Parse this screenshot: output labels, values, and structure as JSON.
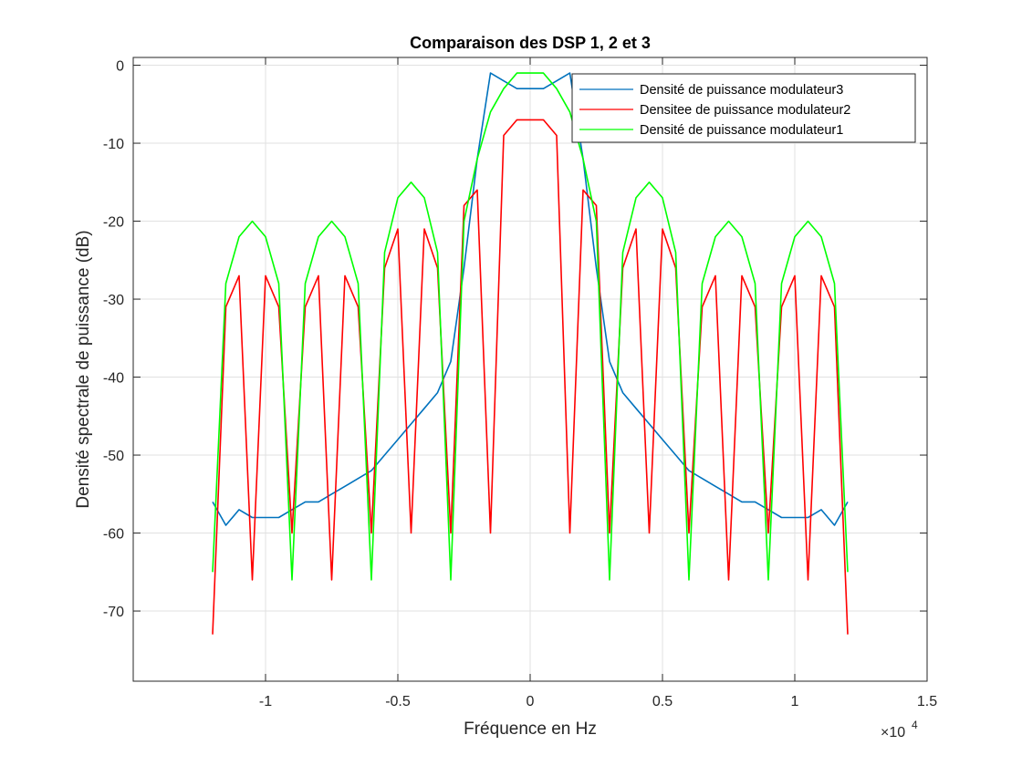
{
  "chart_data": {
    "type": "line",
    "title": "Comparaison des DSP 1, 2 et 3",
    "xlabel": "Fréquence en Hz",
    "ylabel": "Densité spectrale de puissance (dB)",
    "x_exponent_label": "×10",
    "x_exponent_power": "4",
    "xlim": [
      -15000,
      15000
    ],
    "ylim": [
      -79,
      1
    ],
    "x_ticks": [
      -10000,
      -5000,
      0,
      5000,
      10000,
      15000
    ],
    "x_tick_labels": [
      "-1",
      "-0.5",
      "0",
      "0.5",
      "1",
      "1.5"
    ],
    "y_ticks": [
      0,
      -10,
      -20,
      -30,
      -40,
      -50,
      -60,
      -70
    ],
    "y_tick_labels": [
      "0",
      "-10",
      "-20",
      "-30",
      "-40",
      "-50",
      "-60",
      "-70"
    ],
    "grid": true,
    "legend_position": "top-right",
    "series": [
      {
        "name": "Densité de puissance modulateur3",
        "color": "#0072BD",
        "x": [
          -12000,
          -11500,
          -11000,
          -10500,
          -10000,
          -9500,
          -9000,
          -8500,
          -8000,
          -7500,
          -7000,
          -6500,
          -6000,
          -5500,
          -5000,
          -4500,
          -4000,
          -3500,
          -3000,
          -2500,
          -2000,
          -1500,
          -1000,
          -500,
          0,
          500,
          1000,
          1500,
          2000,
          2500,
          3000,
          3500,
          4000,
          4500,
          5000,
          5500,
          6000,
          6500,
          7000,
          7500,
          8000,
          8500,
          9000,
          9500,
          10000,
          10500,
          11000,
          11500,
          12000
        ],
        "values": [
          -56,
          -59,
          -57,
          -58,
          -58,
          -58,
          -57,
          -56,
          -56,
          -55,
          -54,
          -53,
          -52,
          -50,
          -48,
          -46,
          -44,
          -42,
          -38,
          -26,
          -12,
          -1,
          -2,
          -3,
          -3,
          -3,
          -2,
          -1,
          -12,
          -26,
          -38,
          -42,
          -44,
          -46,
          -48,
          -50,
          -52,
          -53,
          -54,
          -55,
          -56,
          -56,
          -57,
          -58,
          -58,
          -58,
          -57,
          -59,
          -56
        ]
      },
      {
        "name": "Densitee de puissance modulateur2",
        "color": "#FF0000",
        "x": [
          -12000,
          -11500,
          -11000,
          -10500,
          -10000,
          -9500,
          -9000,
          -8500,
          -8000,
          -7500,
          -7000,
          -6500,
          -6000,
          -5500,
          -5000,
          -4500,
          -4000,
          -3500,
          -3000,
          -2500,
          -2000,
          -1500,
          -1000,
          -500,
          0,
          500,
          1000,
          1500,
          2000,
          2500,
          3000,
          3500,
          4000,
          4500,
          5000,
          5500,
          6000,
          6500,
          7000,
          7500,
          8000,
          8500,
          9000,
          9500,
          10000,
          10500,
          11000,
          11500,
          12000
        ],
        "values": [
          -73,
          -31,
          -27,
          -66,
          -27,
          -31,
          -60,
          -31,
          -27,
          -66,
          -27,
          -31,
          -60,
          -26,
          -21,
          -60,
          -21,
          -26,
          -60,
          -18,
          -16,
          -60,
          -9,
          -7,
          -7,
          -7,
          -9,
          -60,
          -16,
          -18,
          -60,
          -26,
          -21,
          -60,
          -21,
          -26,
          -60,
          -31,
          -27,
          -66,
          -27,
          -31,
          -60,
          -31,
          -27,
          -66,
          -27,
          -31,
          -73
        ]
      },
      {
        "name": "Densité de puissance modulateur1",
        "color": "#00FF00",
        "x": [
          -12000,
          -11500,
          -11000,
          -10500,
          -10000,
          -9500,
          -9000,
          -8500,
          -8000,
          -7500,
          -7000,
          -6500,
          -6000,
          -5500,
          -5000,
          -4500,
          -4000,
          -3500,
          -3000,
          -2500,
          -2000,
          -1500,
          -1000,
          -500,
          0,
          500,
          1000,
          1500,
          2000,
          2500,
          3000,
          3500,
          4000,
          4500,
          5000,
          5500,
          6000,
          6500,
          7000,
          7500,
          8000,
          8500,
          9000,
          9500,
          10000,
          10500,
          11000,
          11500,
          12000
        ],
        "values": [
          -65,
          -28,
          -22,
          -20,
          -22,
          -28,
          -66,
          -28,
          -22,
          -20,
          -22,
          -28,
          -66,
          -24,
          -17,
          -15,
          -17,
          -24,
          -66,
          -20,
          -12,
          -6,
          -3,
          -1,
          -1,
          -1,
          -3,
          -6,
          -12,
          -20,
          -66,
          -24,
          -17,
          -15,
          -17,
          -24,
          -66,
          -28,
          -22,
          -20,
          -22,
          -28,
          -66,
          -28,
          -22,
          -20,
          -22,
          -28,
          -65
        ]
      }
    ]
  }
}
